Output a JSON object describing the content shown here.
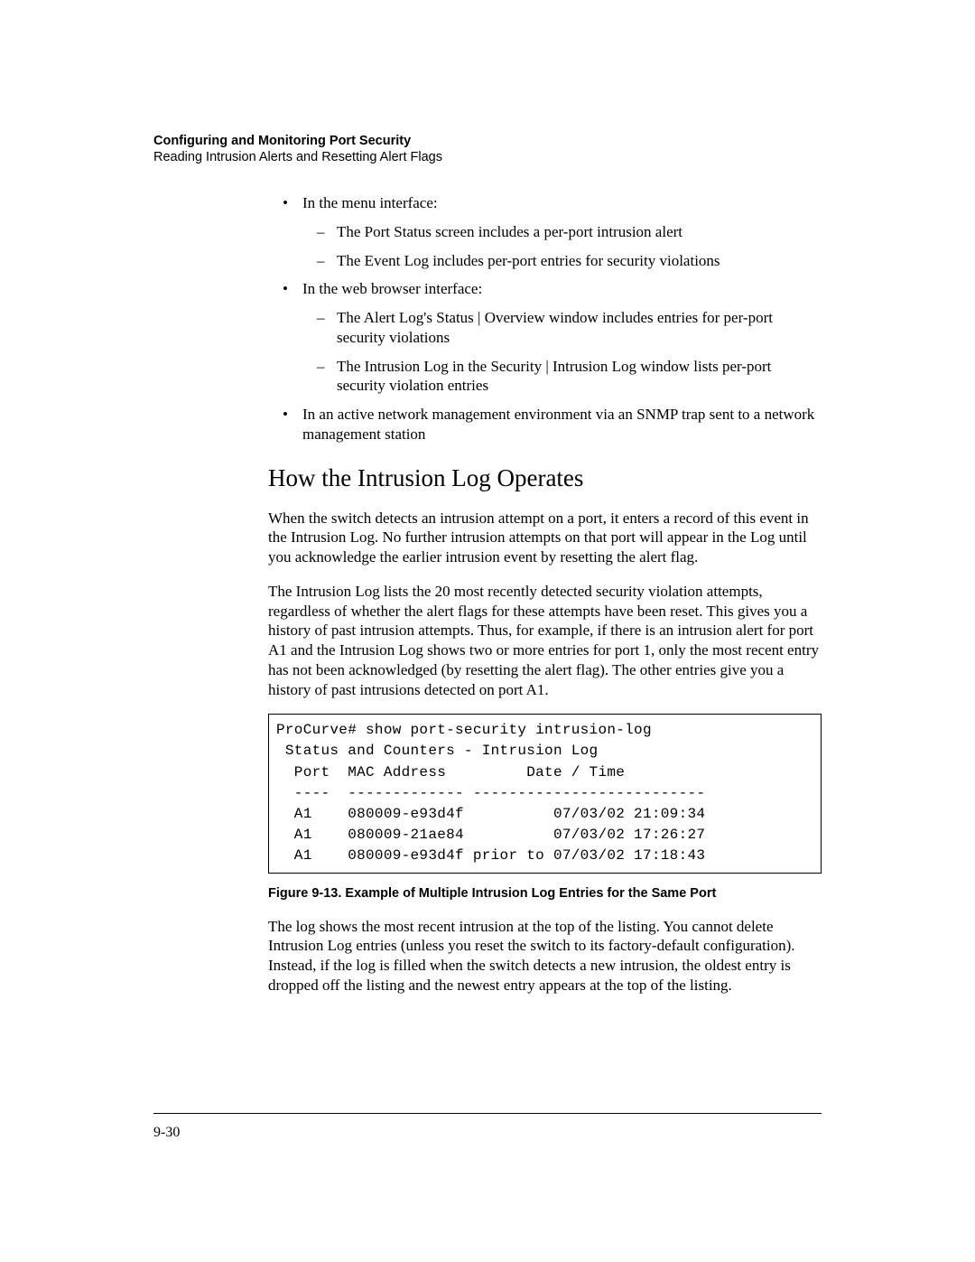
{
  "header": {
    "title": "Configuring and Monitoring Port Security",
    "subtitle": "Reading Intrusion Alerts and Resetting Alert Flags"
  },
  "bullets": {
    "b1": "In the menu interface:",
    "b1d1": "The Port Status screen includes a per-port intrusion alert",
    "b1d2": "The Event Log includes per-port entries for security violations",
    "b2": "In the web browser interface:",
    "b2d1": "The Alert Log's Status | Overview window includes entries for per-port security violations",
    "b2d2": "The Intrusion Log in the Security | Intrusion Log window lists per-port security violation entries",
    "b3": "In an active network management environment via an SNMP trap sent to a network management station"
  },
  "section_heading": "How the Intrusion Log Operates",
  "para1": "When the switch detects an intrusion attempt on a port, it enters a record of this event in the Intrusion Log. No further intrusion attempts on that port will appear in the Log until you acknowledge the earlier intrusion event by resetting the alert flag.",
  "para2": "The Intrusion Log lists the 20 most recently detected security violation attempts, regardless of whether the alert flags for these attempts have been reset. This gives you a history of past intrusion attempts. Thus, for example, if there is an intrusion alert for port A1 and the Intrusion Log shows two or more entries for port 1, only the most recent entry has not been acknowledged (by resetting the alert flag). The other entries give you a history of past intrusions detected on port A1.",
  "terminal": {
    "line1": "ProCurve# show port-security intrusion-log",
    "line2": " Status and Counters - Intrusion Log",
    "line3": "  Port  MAC Address         Date / Time",
    "line4": "  ----  ------------- --------------------------",
    "line5": "  A1    080009-e93d4f          07/03/02 21:09:34",
    "line6": "  A1    080009-21ae84          07/03/02 17:26:27",
    "line7": "  A1    080009-e93d4f prior to 07/03/02 17:18:43"
  },
  "figure_caption": "Figure 9-13. Example of Multiple Intrusion Log Entries for the Same Port",
  "para3": "The log shows the most recent intrusion at the top of the listing. You cannot delete Intrusion Log entries (unless you reset the switch to its factory-default configuration). Instead, if the log is filled when the switch detects a new intrusion, the oldest entry is dropped off the listing and the newest entry appears at the top of the listing.",
  "page_number": "9-30"
}
